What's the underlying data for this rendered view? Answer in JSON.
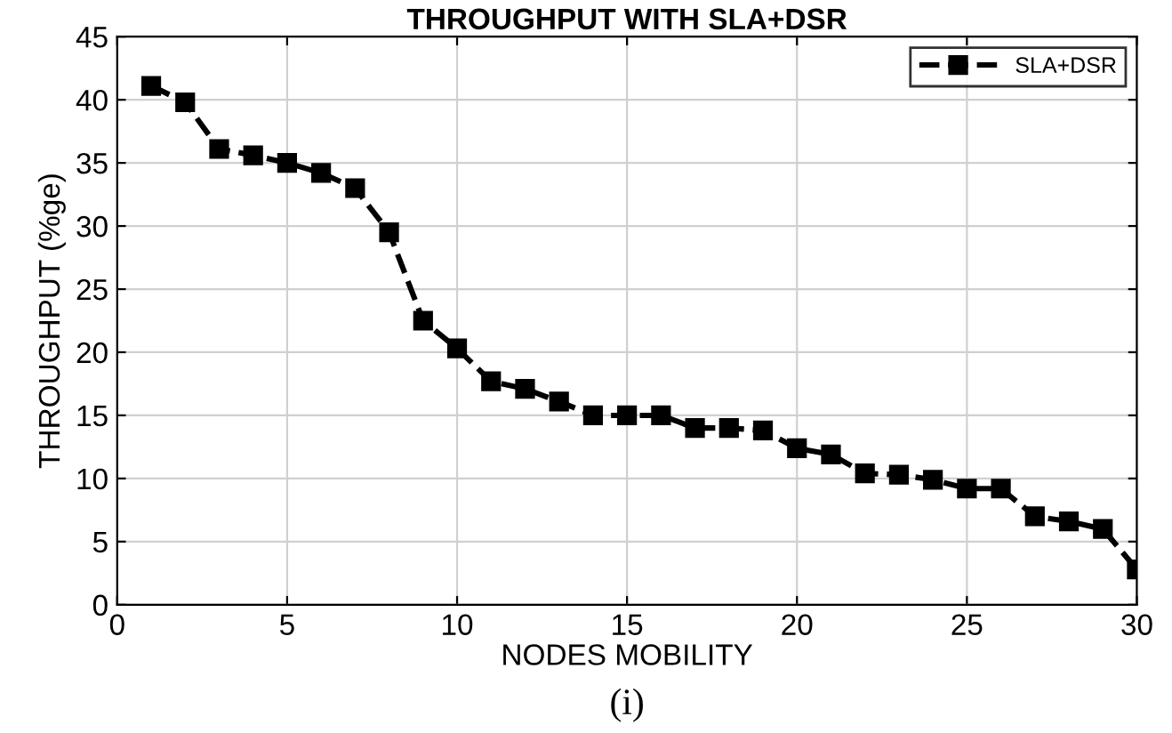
{
  "chart_data": {
    "type": "line",
    "title": "THROUGHPUT WITH SLA+DSR",
    "xlabel": "NODES MOBILITY",
    "ylabel": "THROUGHPUT (%ge)",
    "annotations": [
      "(i)"
    ],
    "x": [
      1,
      2,
      3,
      4,
      5,
      6,
      7,
      8,
      9,
      10,
      11,
      12,
      13,
      14,
      15,
      16,
      17,
      18,
      19,
      20,
      21,
      22,
      23,
      24,
      25,
      26,
      27,
      28,
      29,
      30
    ],
    "series": [
      {
        "name": "SLA+DSR",
        "color": "#000000",
        "values": [
          41.1,
          39.8,
          36.1,
          35.6,
          35.0,
          34.2,
          33.0,
          29.5,
          22.5,
          20.3,
          17.7,
          17.1,
          16.1,
          15.0,
          15.0,
          15.0,
          14.0,
          14.0,
          13.8,
          12.4,
          11.9,
          10.4,
          10.3,
          9.9,
          9.2,
          9.2,
          7.0,
          6.6,
          6.0,
          2.8
        ]
      }
    ],
    "xlim": [
      0,
      30
    ],
    "xticks": [
      0,
      5,
      10,
      15,
      20,
      25,
      30
    ],
    "ylim": [
      0,
      45
    ],
    "yticks": [
      0,
      5,
      10,
      15,
      20,
      25,
      30,
      35,
      40,
      45
    ],
    "grid": true,
    "legend": "top right",
    "marker": "square",
    "line_style": "dashed"
  }
}
